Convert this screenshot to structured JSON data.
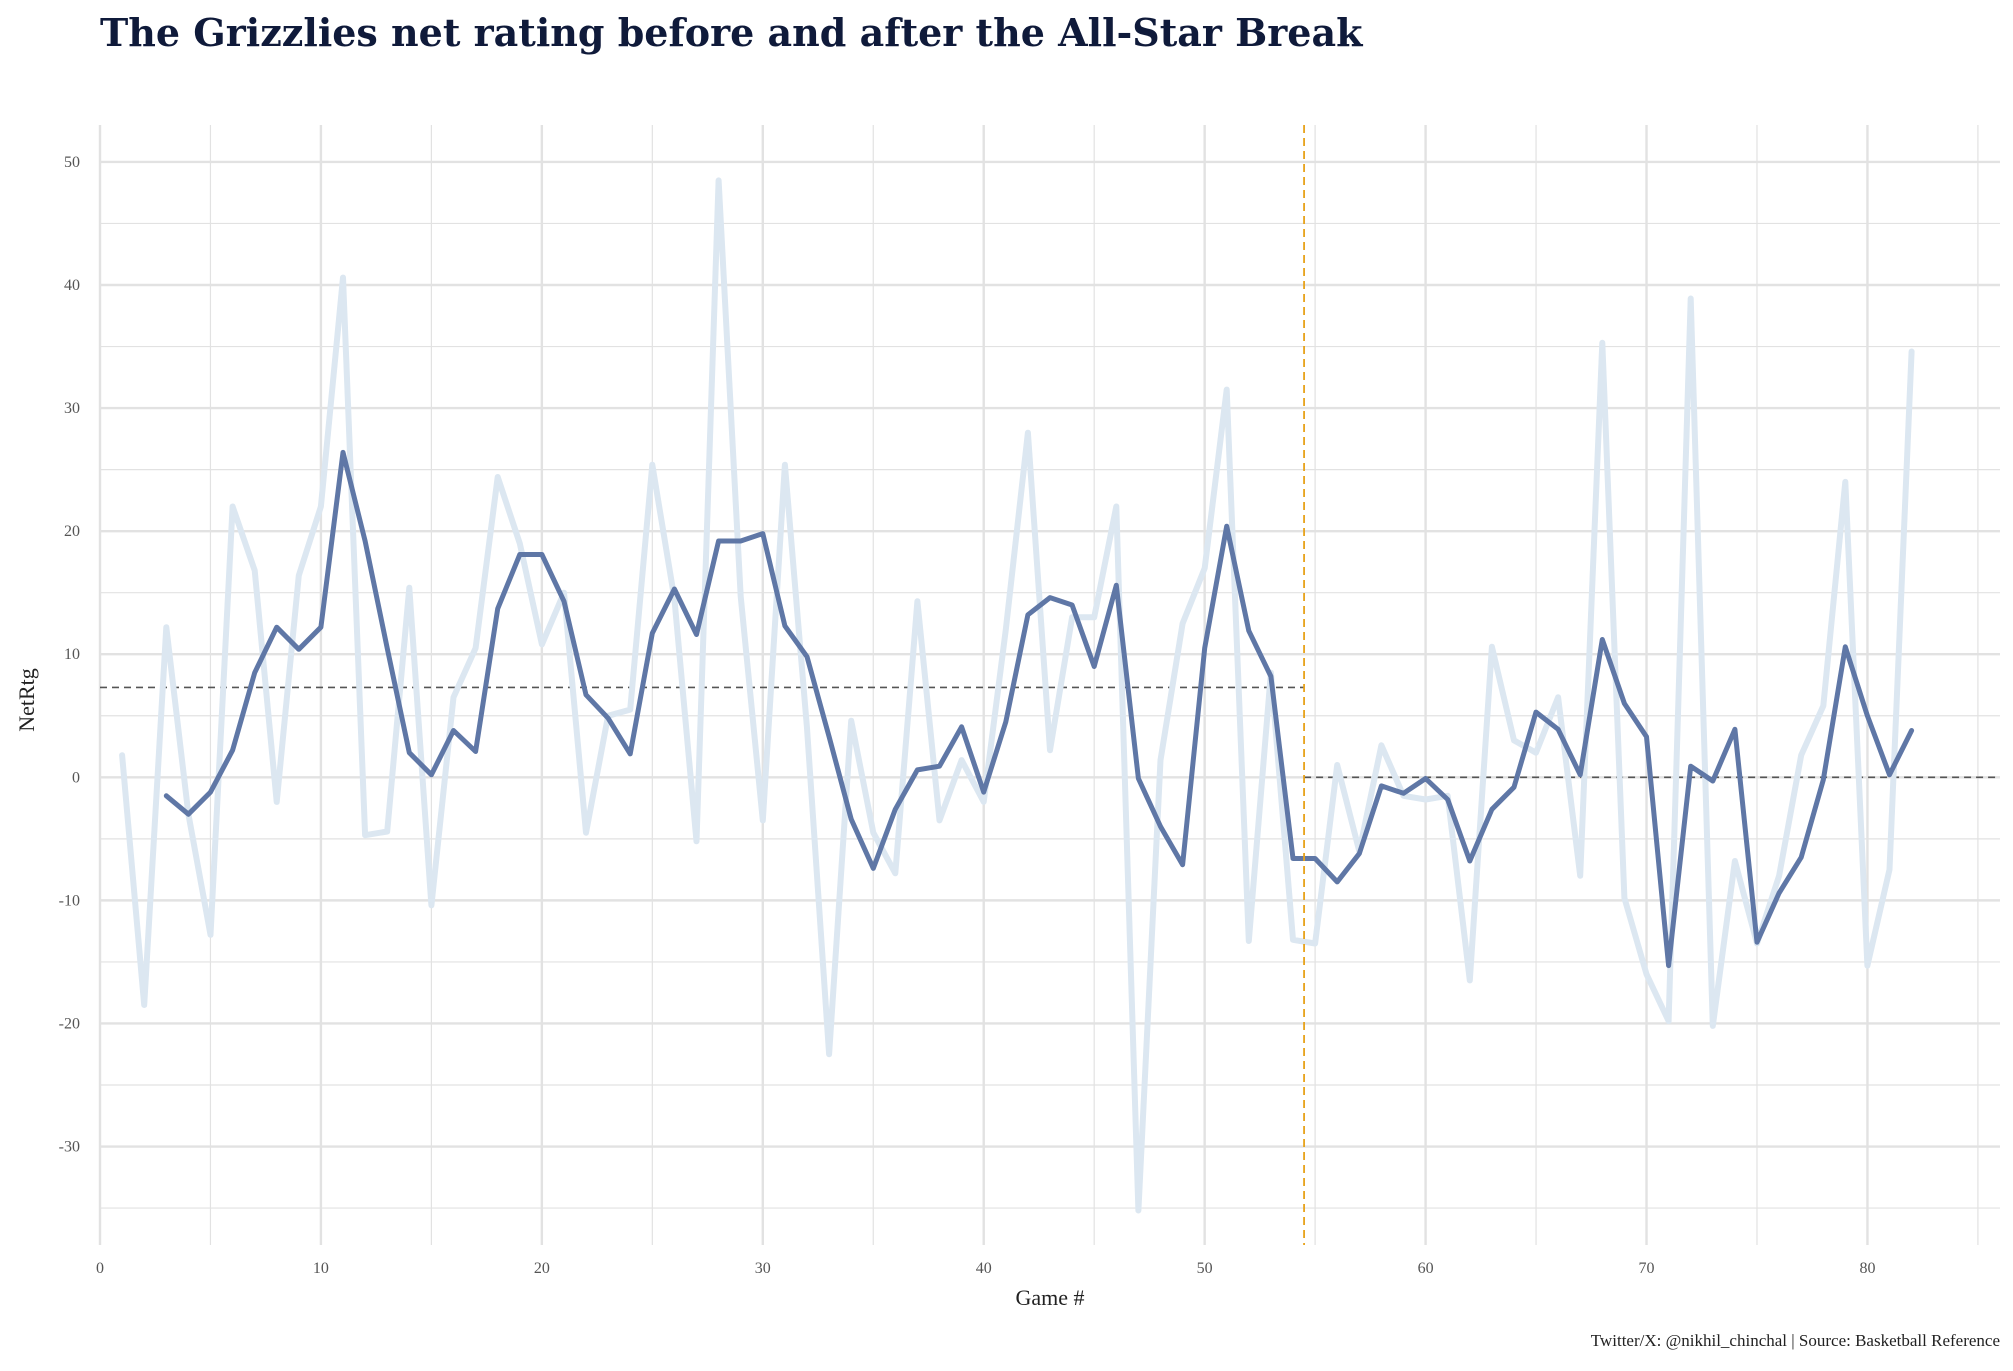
{
  "chart_data": {
    "type": "line",
    "title": "The Grizzlies net rating before and after the All-Star Break",
    "xlabel": "Game #",
    "ylabel": "NetRtg",
    "caption": "Twitter/X: @nikhil_chinchal | Source: Basketball Reference",
    "xlim": [
      0,
      86
    ],
    "ylim": [
      -38,
      53
    ],
    "xticks": [
      0,
      10,
      20,
      30,
      40,
      50,
      60,
      70,
      80
    ],
    "yticks": [
      -30,
      -20,
      -10,
      0,
      10,
      20,
      30,
      40,
      50
    ],
    "grid": true,
    "all_star_break_x": 54.5,
    "reference_lines": [
      {
        "x_start": 0,
        "x_end": 54.5,
        "y": 7.3
      },
      {
        "x_start": 54.5,
        "x_end": 86,
        "y": 0.0
      }
    ],
    "colors": {
      "raw": "#dce7f1",
      "rolling": "#5f77a6",
      "break": "#e7a21a",
      "reference": "#555555",
      "grid": "#e2e2e2"
    },
    "series": [
      {
        "x": [
          1,
          2,
          3,
          4,
          5,
          6,
          7,
          8,
          9,
          10,
          11,
          12,
          13,
          14,
          15,
          16,
          17,
          18,
          19,
          20,
          21,
          22,
          23,
          24,
          25,
          26,
          27,
          28,
          29,
          30,
          31,
          32,
          33,
          34,
          35,
          36,
          37,
          38,
          39,
          40,
          41,
          42,
          43,
          44,
          45,
          46,
          47,
          48,
          49,
          50,
          51,
          52,
          53,
          54,
          55,
          56,
          57,
          58,
          59,
          60,
          61,
          62,
          63,
          64,
          65,
          66,
          67,
          68,
          69,
          70,
          71,
          72,
          73,
          74,
          75,
          76,
          77,
          78,
          79,
          80,
          81,
          82
        ],
        "values": [
          1.8,
          -18.5,
          12.2,
          -3.0,
          -12.8,
          22.0,
          16.8,
          -2.0,
          16.4,
          22.0,
          40.6,
          -4.7,
          -4.4,
          15.4,
          -10.4,
          6.5,
          10.5,
          24.4,
          19.0,
          10.8,
          15.0,
          -4.5,
          5.0,
          5.5,
          25.4,
          14.5,
          -5.2,
          48.5,
          14.7,
          -3.5,
          25.4,
          4.0,
          -22.5,
          4.6,
          -4.5,
          -7.8,
          14.3,
          -3.5,
          1.4,
          -2.0,
          12.0,
          28.0,
          2.2,
          13.0,
          13.0,
          22.0,
          -35.2,
          1.4,
          12.5,
          17.0,
          31.5,
          -13.3,
          8.5,
          -13.2,
          -13.5,
          1.0,
          -6.0,
          2.6,
          -1.5,
          -1.8,
          -1.5,
          -16.5,
          10.6,
          3.0,
          2.0,
          6.5,
          -8.0,
          35.3,
          -9.8,
          -16.0,
          -19.8,
          38.9,
          -20.2,
          -6.8,
          -13.5,
          -8.0,
          1.8,
          5.8,
          24.0,
          -15.3,
          -7.5,
          34.6
        ]
      },
      {
        "x": [
          3,
          4,
          5,
          6,
          7,
          8,
          9,
          10,
          11,
          12,
          13,
          14,
          15,
          16,
          17,
          18,
          19,
          20,
          21,
          22,
          23,
          24,
          25,
          26,
          27,
          28,
          29,
          30,
          31,
          32,
          33,
          34,
          35,
          36,
          37,
          38,
          39,
          40,
          41,
          42,
          43,
          44,
          45,
          46,
          47,
          48,
          49,
          50,
          51,
          52,
          53,
          54,
          55,
          56,
          57,
          58,
          59,
          60,
          61,
          62,
          63,
          64,
          65,
          66,
          67,
          68,
          69,
          70,
          71,
          72,
          73,
          74,
          75,
          76,
          77,
          78,
          79,
          80,
          81,
          82
        ],
        "values": [
          -1.5,
          -3.0,
          -1.2,
          2.2,
          8.5,
          12.2,
          10.4,
          12.2,
          26.4,
          19.2,
          10.5,
          2.0,
          0.2,
          3.8,
          2.1,
          13.7,
          18.1,
          18.1,
          14.3,
          6.7,
          4.8,
          1.9,
          11.7,
          15.3,
          11.6,
          19.2,
          19.2,
          19.8,
          12.3,
          9.8,
          3.3,
          -3.4,
          -7.4,
          -2.6,
          0.6,
          0.9,
          4.1,
          -1.2,
          4.5,
          13.2,
          14.6,
          14.0,
          9.0,
          15.6,
          -0.1,
          -4.0,
          -7.1,
          10.5,
          20.4,
          11.9,
          8.2,
          -6.6,
          -6.6,
          -8.5,
          -6.2,
          -0.7,
          -1.3,
          -0.1,
          -1.8,
          -6.8,
          -2.6,
          -0.8,
          5.3,
          3.9,
          0.2,
          11.2,
          6.0,
          3.3,
          -15.3,
          0.9,
          -0.3,
          3.9,
          -13.4,
          -9.4,
          -6.5,
          -0.2,
          10.6,
          5.0,
          0.2,
          3.8
        ]
      }
    ]
  }
}
